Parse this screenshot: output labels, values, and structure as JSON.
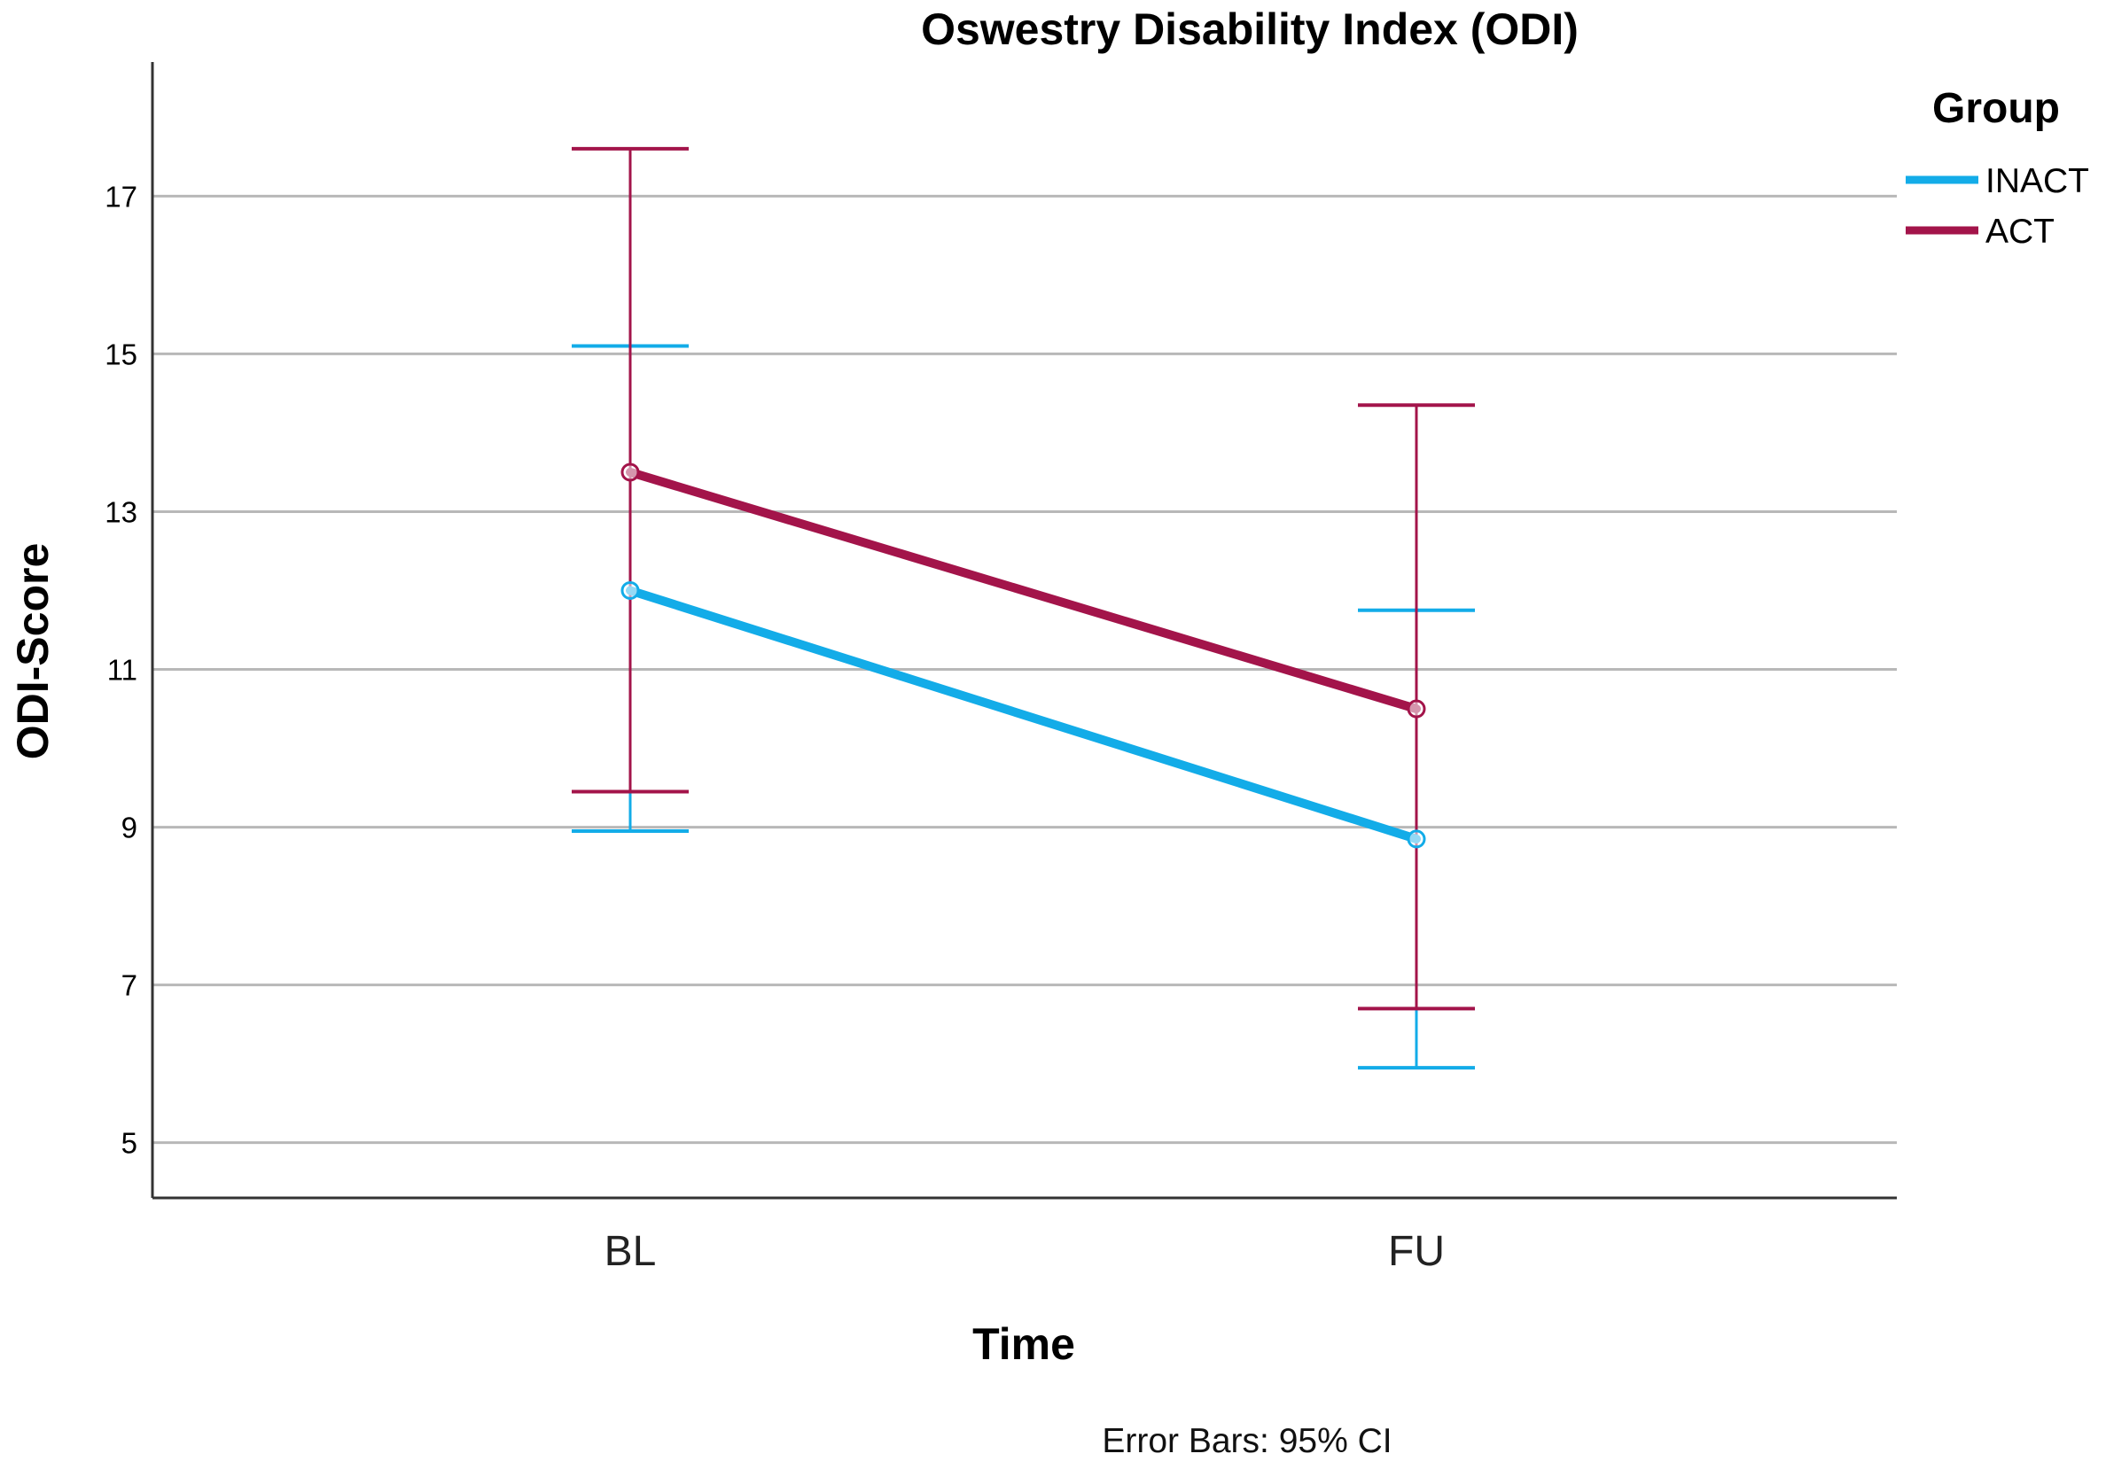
{
  "chart_data": {
    "type": "line",
    "title": "Oswestry Disability Index (ODI)",
    "xlabel": "Time",
    "ylabel": "ODI-Score",
    "categories": [
      "BL",
      "FU"
    ],
    "ylim": [
      4.3,
      18.7
    ],
    "yticks": [
      5,
      7,
      9,
      11,
      13,
      15,
      17
    ],
    "grid": true,
    "legend": {
      "title": "Group",
      "position": "top-right"
    },
    "series": [
      {
        "name": "INACT",
        "color": "#13ace8",
        "values": [
          12.0,
          8.85
        ],
        "ci_low": [
          8.95,
          5.95
        ],
        "ci_high": [
          15.1,
          11.75
        ]
      },
      {
        "name": "ACT",
        "color": "#a3144a",
        "values": [
          13.5,
          10.5
        ],
        "ci_low": [
          9.45,
          6.7
        ],
        "ci_high": [
          17.6,
          14.35
        ]
      }
    ],
    "footnote": "Error Bars: 95% CI"
  }
}
